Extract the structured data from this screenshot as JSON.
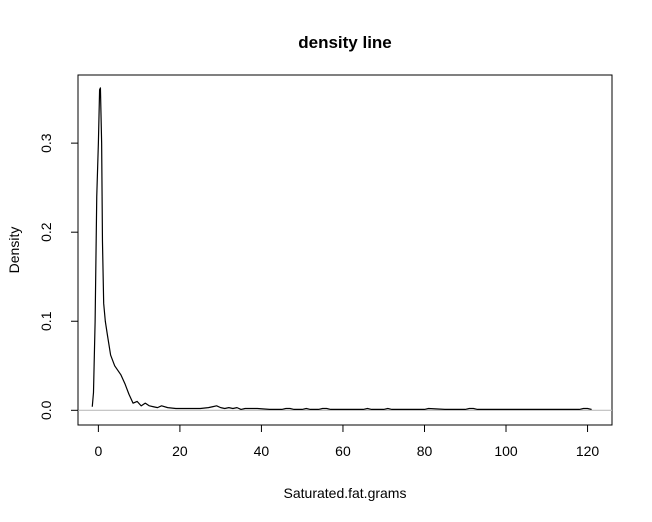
{
  "chart_data": {
    "type": "line",
    "title": "density line",
    "xlabel": "Saturated.fat.grams",
    "ylabel": "Density",
    "xlim": [
      -5,
      126
    ],
    "ylim": [
      -0.0165,
      0.3765
    ],
    "xticks": [
      0,
      20,
      40,
      60,
      80,
      100,
      120
    ],
    "yticks": [
      0.0,
      0.1,
      0.2,
      0.3
    ],
    "xtick_labels": [
      "0",
      "20",
      "40",
      "60",
      "80",
      "100",
      "120"
    ],
    "ytick_labels": [
      "0.0",
      "0.1",
      "0.2",
      "0.3"
    ],
    "baseline": 0,
    "grid": false,
    "series": [
      {
        "x": [
          -1.5,
          -1.2,
          -0.8,
          -0.4,
          0,
          0.3,
          0.5,
          0.8,
          1.0,
          1.3,
          1.7,
          2.2,
          3.0,
          4.0,
          5.5,
          6.5,
          7.5,
          8.5,
          9.5,
          10.5,
          11.5,
          12.5,
          13.5,
          14.5,
          15.5,
          17,
          19,
          22,
          25,
          27,
          28,
          29,
          30,
          31,
          32,
          33,
          34,
          35,
          36,
          39,
          42,
          45,
          46,
          47,
          48,
          50,
          51,
          52,
          54,
          55,
          56,
          57,
          60,
          65,
          66,
          67,
          70,
          71,
          72,
          75,
          80,
          81,
          85,
          90,
          91,
          92,
          93,
          95,
          100,
          110,
          118,
          119,
          120,
          121
        ],
        "y": [
          0.004,
          0.02,
          0.1,
          0.24,
          0.3,
          0.36,
          0.362,
          0.3,
          0.19,
          0.12,
          0.1,
          0.085,
          0.062,
          0.05,
          0.04,
          0.03,
          0.018,
          0.008,
          0.01,
          0.005,
          0.008,
          0.005,
          0.004,
          0.003,
          0.005,
          0.003,
          0.002,
          0.002,
          0.002,
          0.003,
          0.004,
          0.005,
          0.003,
          0.002,
          0.003,
          0.002,
          0.003,
          0.001,
          0.002,
          0.002,
          0.001,
          0.001,
          0.002,
          0.002,
          0.001,
          0.001,
          0.002,
          0.001,
          0.001,
          0.002,
          0.002,
          0.001,
          0.001,
          0.001,
          0.002,
          0.001,
          0.001,
          0.002,
          0.001,
          0.001,
          0.001,
          0.002,
          0.001,
          0.001,
          0.002,
          0.002,
          0.001,
          0.001,
          0.001,
          0.001,
          0.001,
          0.002,
          0.002,
          0.001
        ]
      }
    ]
  }
}
